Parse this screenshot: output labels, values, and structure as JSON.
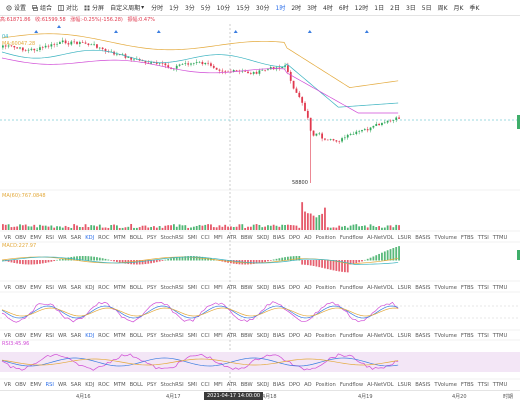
{
  "toolbar": {
    "settings_label": "设置",
    "combine_label": "组合",
    "compare_label": "对比",
    "split_label": "分屏",
    "custom_period_label": "自定义周期",
    "periods": [
      "分时",
      "1分",
      "3分",
      "5分",
      "10分",
      "15分",
      "30分",
      "1时",
      "2时",
      "3时",
      "4时",
      "6时",
      "12时",
      "1日",
      "2日",
      "3日",
      "5日",
      "周K",
      "月K",
      "季K"
    ],
    "active_period": "1时"
  },
  "infobar": {
    "high": "高:61871.86",
    "low": "收:61599.58",
    "change": "涨幅:-0.25%(-156.28)",
    "amp": "振幅:0.47%"
  },
  "price_markers": {
    "left_tag": "04",
    "ma_tag": "MA:60047.28",
    "low_price_label": "58800"
  },
  "volume_label": "MA(60):767.0848",
  "macd_label": "MACD:227.97",
  "rsi_label": "RSI3:45.96",
  "indicator_rows": [
    [
      "VR",
      "OBV",
      "EMV",
      "RSI",
      "WR",
      "SAR",
      "KDJ",
      "ROC",
      "MTM",
      "BOLL",
      "PSY",
      "StochRSI",
      "SMI",
      "CCI",
      "MFI",
      "ATR",
      "BBW",
      "SKDJ",
      "BIAS",
      "DPO",
      "AO",
      "Position",
      "Fundflow",
      "AI-NetVOL",
      "LSUR",
      "BASIS",
      "TVolume",
      "FTBS",
      "TTSI",
      "TTMU"
    ],
    [
      "VR",
      "OBV",
      "EMV",
      "RSI",
      "WR",
      "SAR",
      "KDJ",
      "ROC",
      "MTM",
      "BOLL",
      "PSY",
      "StochRSI",
      "SMI",
      "CCI",
      "MFI",
      "ATR",
      "BBW",
      "SKDJ",
      "BIAS",
      "DPO",
      "AO",
      "Position",
      "Fundflow",
      "AI-NetVOL",
      "LSUR",
      "BASIS",
      "TVolume",
      "FTBS",
      "TTSI",
      "TTMU"
    ],
    [
      "VR",
      "OBV",
      "EMV",
      "RSI",
      "WR",
      "SAR",
      "KDJ",
      "ROC",
      "MTM",
      "BOLL",
      "PSY",
      "StochRSI",
      "SMI",
      "CCI",
      "MFI",
      "ATR",
      "BBW",
      "SKDJ",
      "BIAS",
      "DPO",
      "AO",
      "Position",
      "Fundflow",
      "AI-NetVOL",
      "LSUR",
      "BASIS",
      "TVolume",
      "FTBS",
      "TTSI",
      "TTMU"
    ],
    [
      "VR",
      "OBV",
      "EMV",
      "RSI",
      "WR",
      "SAR",
      "KDJ",
      "ROC",
      "MTM",
      "BOLL",
      "PSY",
      "StochRSI",
      "SMI",
      "CCI",
      "MFI",
      "ATR",
      "BBW",
      "SKDJ",
      "BIAS",
      "DPO",
      "AO",
      "Position",
      "Fundflow",
      "AI-NetVOL",
      "LSUR",
      "BASIS",
      "TVolume",
      "FTBS",
      "TTSI",
      "TTMU"
    ]
  ],
  "selected_indicators": [
    "KDJ",
    "MACD",
    "KDJ",
    "RSI"
  ],
  "xaxis": {
    "labels": [
      "4月16",
      "4月17",
      "4月18",
      "4月19",
      "4月20"
    ],
    "crosshair_time": "2021-04-17 14:00:00",
    "right_label": "时期"
  },
  "colors": {
    "up": "#2fa85a",
    "down": "#e0394e",
    "accent": "#2b6ee9",
    "ma_gold": "#e3a93b",
    "ma_teal": "#3bb3c0",
    "ma_magenta": "#d04bd6"
  }
}
